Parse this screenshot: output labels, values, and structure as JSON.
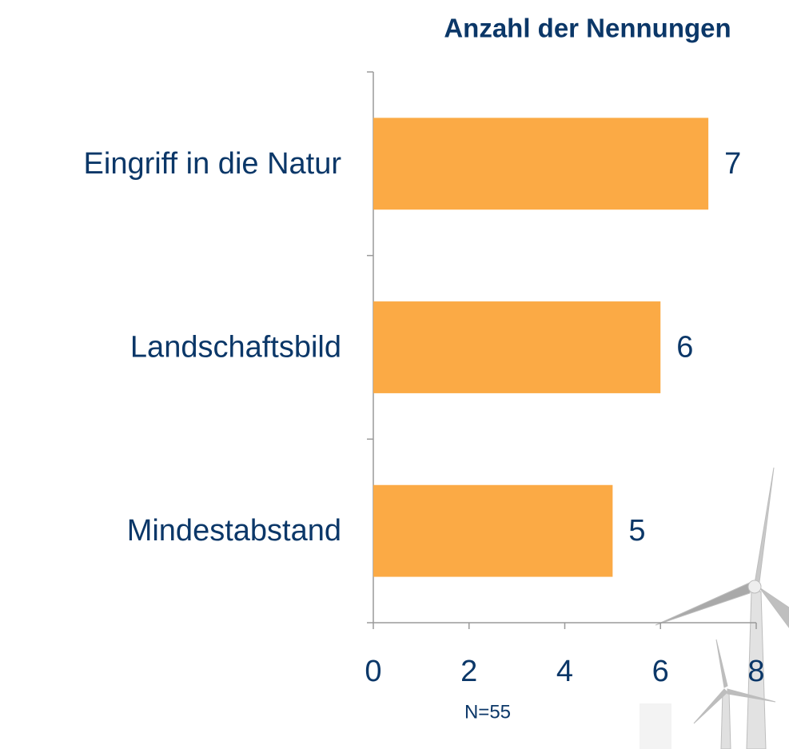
{
  "chart_data": {
    "type": "bar",
    "orientation": "horizontal",
    "title": "Anzahl der Nennungen",
    "categories": [
      "Eingriff in die Natur",
      "Landschaftsbild",
      "Mindestabstand"
    ],
    "values": [
      7,
      6,
      5
    ],
    "color": "#fbaa45",
    "xlim": [
      0,
      8
    ],
    "xticks": [
      0,
      2,
      4,
      6,
      8
    ],
    "grid": false,
    "annotation": "N=55"
  }
}
